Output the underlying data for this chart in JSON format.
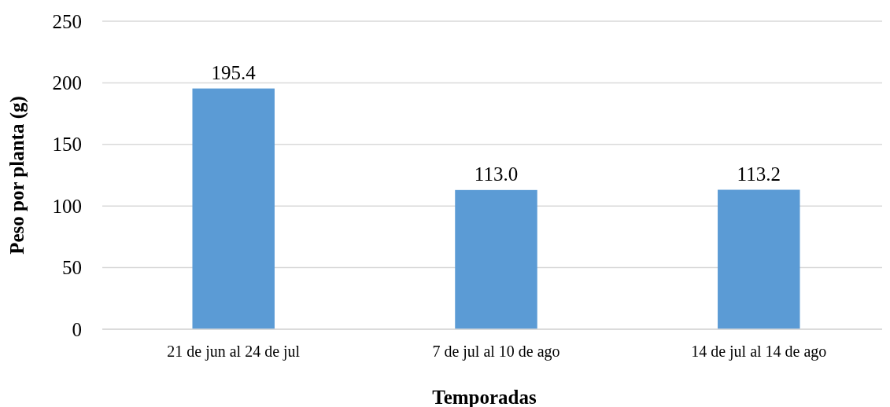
{
  "chart_data": {
    "type": "bar",
    "xlabel": "Temporadas",
    "ylabel": "Peso por planta (g)",
    "categories": [
      "21 de jun al 24 de jul",
      "7 de jul al 10 de ago",
      "14 de jul al 14 de ago"
    ],
    "values": [
      195.4,
      113.0,
      113.2
    ],
    "value_labels": [
      "195.4",
      "113.0",
      "113.2"
    ],
    "color": "#5b9bd5",
    "ylim": [
      0,
      250
    ],
    "yticks": [
      0,
      50,
      100,
      150,
      200,
      250
    ],
    "grid": "y"
  }
}
